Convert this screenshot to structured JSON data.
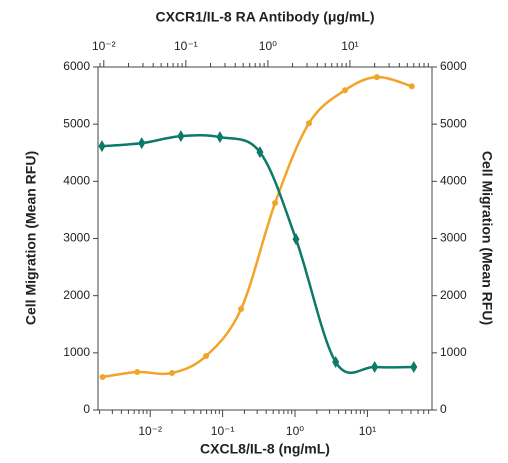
{
  "chart_data": {
    "type": "scatter",
    "x_label": "CXCL8/IL-8 (ng/mL)",
    "x2_label": "CXCR1/IL-8 RA Antibody (μg/mL)",
    "y_label": "Cell Migration (Mean RFU)",
    "y2_label": "Cell Migration (Mean RFU)",
    "xscale": "log",
    "x2scale": "log",
    "xlim": [
      0.0019,
      78
    ],
    "xticks": [
      {
        "value": 0.01,
        "label": "10⁻²"
      },
      {
        "value": 0.1,
        "label": "10⁻¹"
      },
      {
        "value": 1,
        "label": "10⁰"
      },
      {
        "value": 10,
        "label": "10¹"
      }
    ],
    "x2lim": [
      0.0085,
      100
    ],
    "x2ticks": [
      {
        "value": 0.01,
        "label": "10⁻²"
      },
      {
        "value": 0.1,
        "label": "10⁻¹"
      },
      {
        "value": 1,
        "label": "10⁰"
      },
      {
        "value": 10,
        "label": "10¹"
      }
    ],
    "ylim": [
      0,
      6000
    ],
    "yticks": [
      0,
      1000,
      2000,
      3000,
      4000,
      5000,
      6000
    ],
    "y2lim": [
      0,
      6000
    ],
    "y2ticks": [
      0,
      1000,
      2000,
      3000,
      4000,
      5000,
      6000
    ],
    "series": [
      {
        "color": "#f2a428",
        "marker": "circle",
        "xaxis": "x",
        "x": [
          0.0022,
          0.0066,
          0.02,
          0.059,
          0.18,
          0.53,
          1.56,
          4.9,
          13.5,
          41
        ],
        "values": [
          577,
          664,
          647,
          944,
          1766,
          3620,
          5017,
          5594,
          5822,
          5664
        ]
      },
      {
        "color": "#0b7a68",
        "marker": "diamond",
        "xaxis": "x2",
        "x": [
          0.0095,
          0.029,
          0.087,
          0.26,
          0.8,
          2.2,
          6.7,
          20,
          60
        ],
        "values": [
          4615,
          4668,
          4790,
          4773,
          4510,
          2990,
          839,
          752,
          752
        ]
      }
    ]
  }
}
